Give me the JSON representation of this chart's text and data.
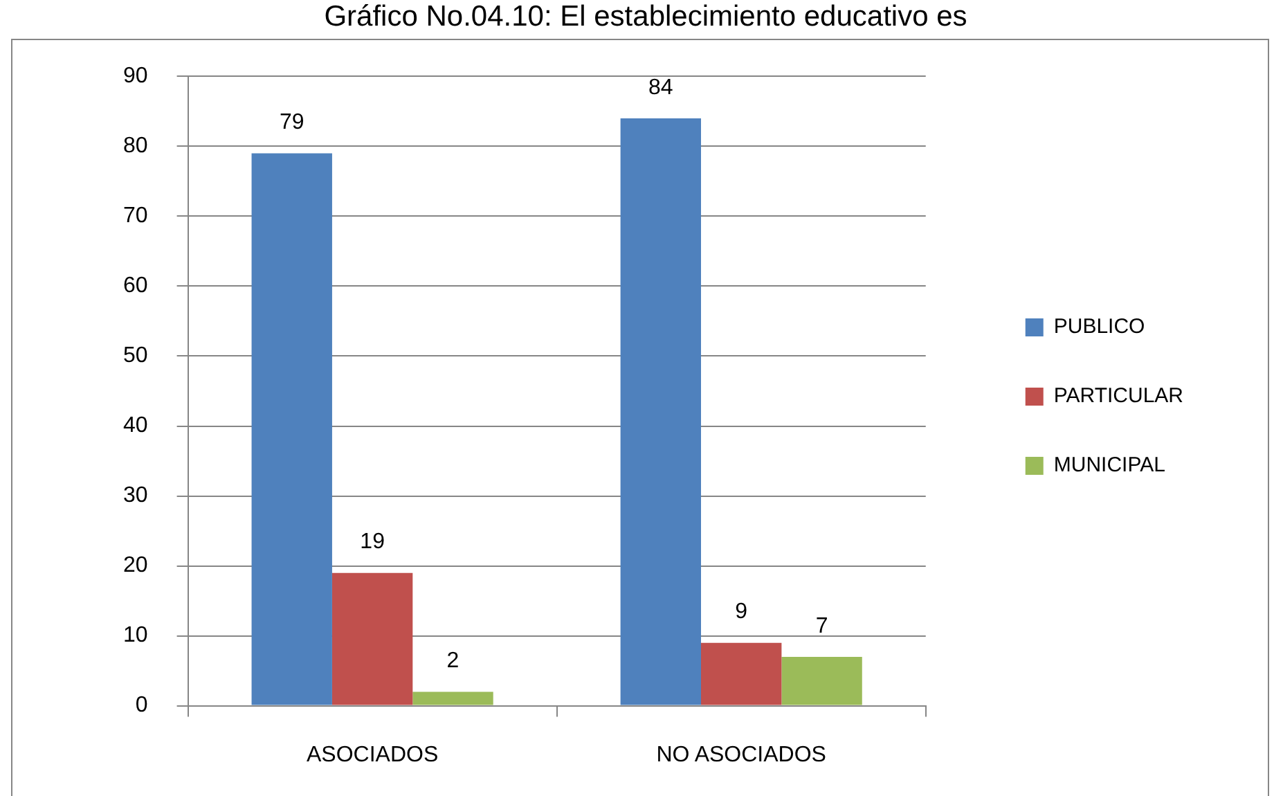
{
  "chart_data": {
    "type": "bar",
    "title": "Gráfico No.04.10: El establecimiento educativo es",
    "categories": [
      "ASOCIADOS",
      "NO ASOCIADOS"
    ],
    "series": [
      {
        "name": "PUBLICO",
        "color": "#4f81bd",
        "values": [
          79,
          84
        ]
      },
      {
        "name": "PARTICULAR",
        "color": "#c0504d",
        "values": [
          19,
          9
        ]
      },
      {
        "name": "MUNICIPAL",
        "color": "#9bbb59",
        "values": [
          2,
          7
        ]
      }
    ],
    "ylim": [
      0,
      90
    ],
    "yticks": [
      0,
      10,
      20,
      30,
      40,
      50,
      60,
      70,
      80,
      90
    ],
    "grid": "y",
    "legend": "right",
    "data_labels": true
  }
}
